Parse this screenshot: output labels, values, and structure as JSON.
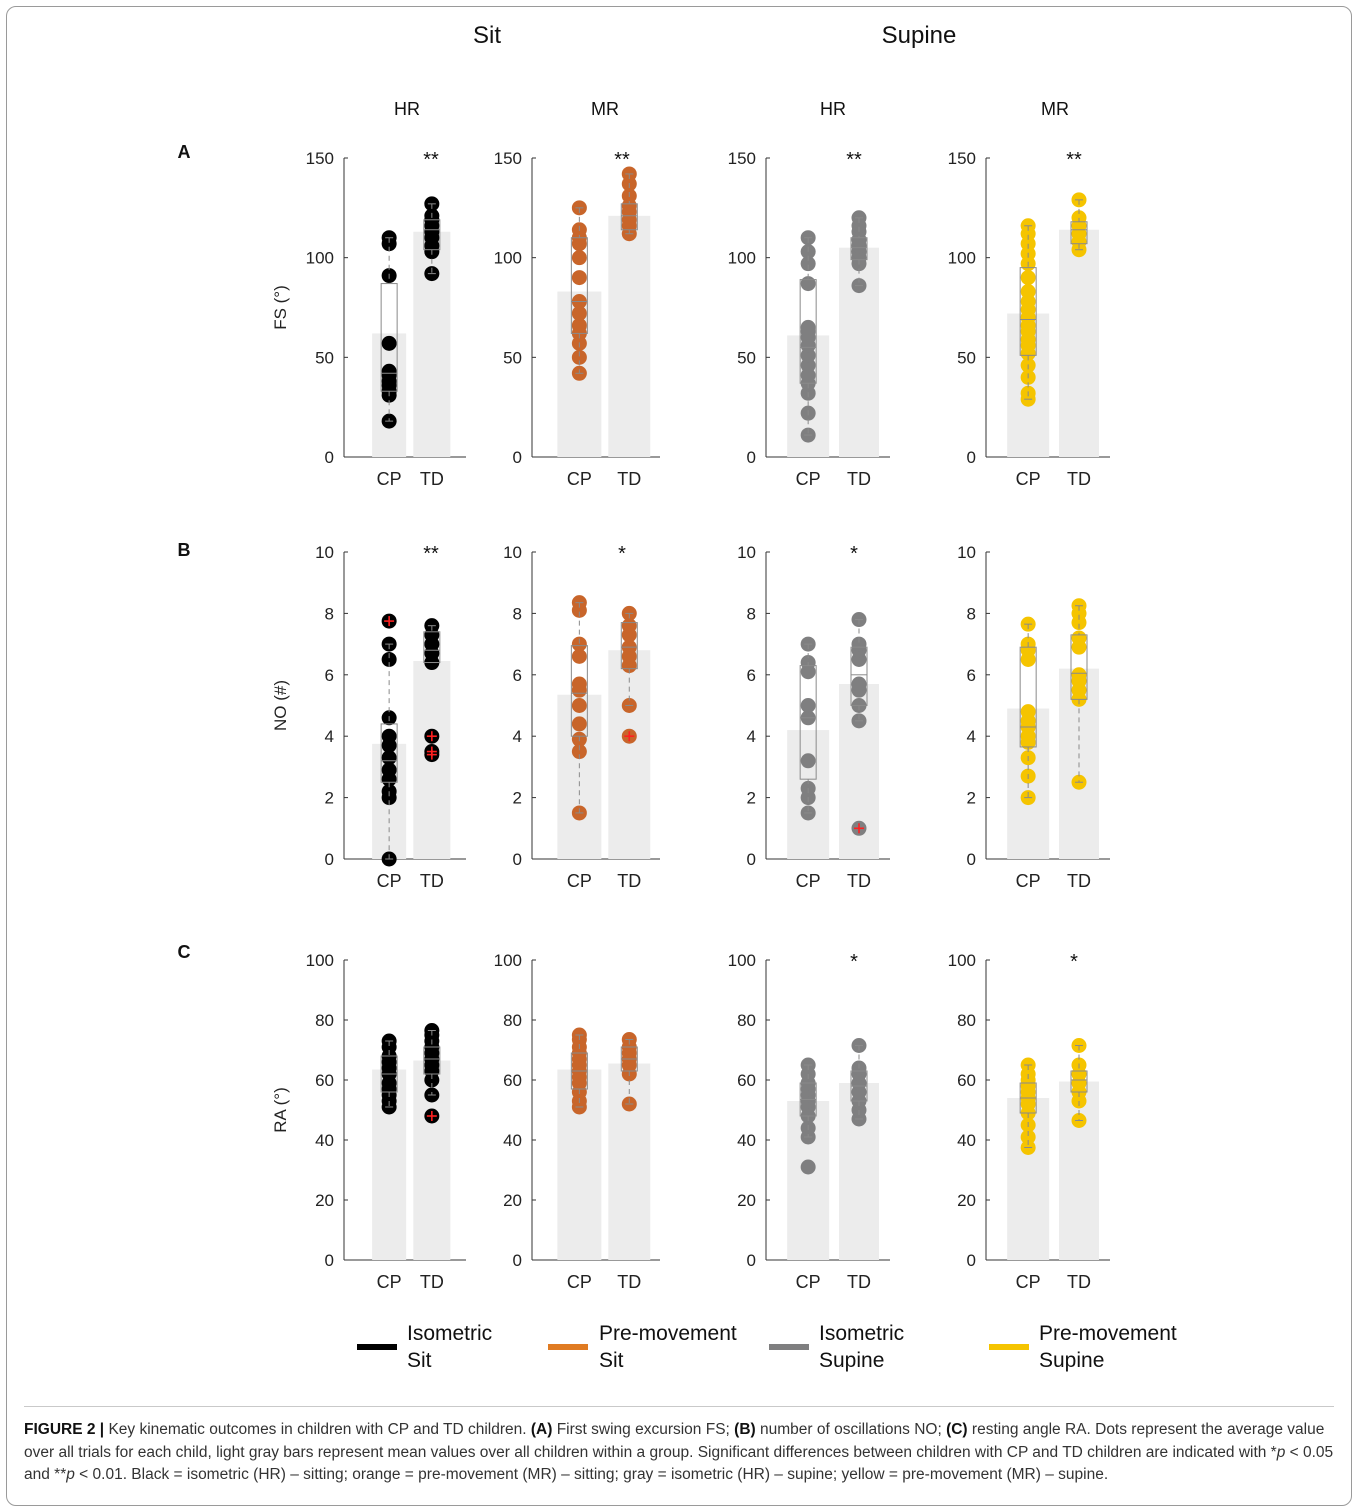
{
  "column_headers": [
    "Sit",
    "Supine"
  ],
  "panel_titles": [
    "HR",
    "MR",
    "HR",
    "MR"
  ],
  "row_labels": [
    "A",
    "B",
    "C"
  ],
  "legend": [
    {
      "line1": "Isometric",
      "line2": "Sit",
      "color": "#000000"
    },
    {
      "line1": "Pre-movement",
      "line2": "Sit",
      "color": "#e07b22"
    },
    {
      "line1": "Isometric",
      "line2": "Supine",
      "color": "#7f7f80"
    },
    {
      "line1": "Pre-movement",
      "line2": "Supine",
      "color": "#f5c400"
    }
  ],
  "caption": {
    "label": "FIGURE 2 |",
    "s1": " Key kinematic outcomes in children with CP and TD children. ",
    "a_label": "(A)",
    "a_text": " First swing excursion FS; ",
    "b_label": "(B)",
    "b_text": " number of oscillations NO; ",
    "c_label": "(C)",
    "c_text": " resting angle RA. Dots represent the average value over all trials for each child, light gray bars represent mean values over all children within a group. Significant differences between children with CP and TD children are indicated with *",
    "p1": "p",
    "t1": " < 0.05 and **",
    "p2": "p",
    "t2": " < 0.01. Black = isometric (HR) – sitting; orange = pre-movement (MR) – sitting; gray = isometric (HR) – supine; yellow = pre-movement (MR) – supine."
  },
  "chart_data": [
    {
      "type": "bar",
      "row": "A",
      "panel": 1,
      "ylabel": "FS (°)",
      "ylim": [
        0,
        150
      ],
      "yticks": [
        0,
        50,
        100,
        150
      ],
      "categories": [
        "CP",
        "TD"
      ],
      "sig": "**",
      "color": "#000000",
      "values": [
        62,
        113
      ],
      "points": [
        [
          18,
          31,
          33,
          36,
          38,
          41,
          43,
          57,
          91,
          107,
          110
        ],
        [
          92,
          103,
          106,
          110,
          113,
          116,
          119,
          121,
          127
        ]
      ],
      "box": [
        {
          "q1": 33,
          "med": 42,
          "q3": 87,
          "wl": 18,
          "wh": 110,
          "out": []
        },
        {
          "q1": 104,
          "med": 114,
          "q3": 119,
          "wl": 92,
          "wh": 127,
          "out": []
        }
      ]
    },
    {
      "type": "bar",
      "row": "A",
      "panel": 2,
      "ylabel": "",
      "ylim": [
        0,
        150
      ],
      "yticks": [
        0,
        50,
        100,
        150
      ],
      "categories": [
        "CP",
        "TD"
      ],
      "sig": "**",
      "color": "#c8652a",
      "values": [
        83,
        121
      ],
      "points": [
        [
          42,
          50,
          57,
          62,
          66,
          72,
          78,
          90,
          100,
          107,
          110,
          114,
          125
        ],
        [
          112,
          116,
          119,
          123,
          126,
          131,
          137,
          142
        ]
      ],
      "box": [
        {
          "q1": 62,
          "med": 78,
          "q3": 110,
          "wl": 42,
          "wh": 125,
          "out": []
        },
        {
          "q1": 114,
          "med": 121,
          "q3": 127,
          "wl": 112,
          "wh": 142,
          "out": []
        }
      ]
    },
    {
      "type": "bar",
      "row": "A",
      "panel": 3,
      "ylabel": "",
      "ylim": [
        0,
        150
      ],
      "yticks": [
        0,
        50,
        100,
        150
      ],
      "categories": [
        "CP",
        "TD"
      ],
      "sig": "**",
      "color": "#7f7f80",
      "values": [
        61,
        105
      ],
      "points": [
        [
          11,
          22,
          32,
          37,
          41,
          46,
          51,
          56,
          60,
          63,
          65,
          87,
          97,
          103,
          110
        ],
        [
          86,
          97,
          100,
          103,
          106,
          109,
          113,
          116,
          120
        ]
      ],
      "box": [
        {
          "q1": 37,
          "med": 55,
          "q3": 89,
          "wl": 11,
          "wh": 110,
          "out": []
        },
        {
          "q1": 99,
          "med": 105,
          "q3": 110,
          "wl": 86,
          "wh": 120,
          "out": []
        }
      ]
    },
    {
      "type": "bar",
      "row": "A",
      "panel": 4,
      "ylabel": "",
      "ylim": [
        0,
        150
      ],
      "yticks": [
        0,
        50,
        100,
        150
      ],
      "categories": [
        "CP",
        "TD"
      ],
      "sig": "**",
      "color": "#f5c400",
      "values": [
        72,
        114
      ],
      "points": [
        [
          29,
          32,
          40,
          46,
          52,
          56,
          59,
          63,
          66,
          70,
          74,
          78,
          83,
          90,
          97,
          102,
          107,
          112,
          116
        ],
        [
          104,
          108,
          112,
          116,
          120,
          129
        ]
      ],
      "box": [
        {
          "q1": 51,
          "med": 69,
          "q3": 95,
          "wl": 29,
          "wh": 116,
          "out": []
        },
        {
          "q1": 107,
          "med": 114,
          "q3": 118,
          "wl": 104,
          "wh": 129,
          "out": []
        }
      ]
    },
    {
      "type": "bar",
      "row": "B",
      "panel": 1,
      "ylabel": "NO (#)",
      "ylim": [
        0,
        10
      ],
      "yticks": [
        0,
        2,
        4,
        6,
        8,
        10
      ],
      "categories": [
        "CP",
        "TD"
      ],
      "sig": "**",
      "color": "#000000",
      "values": [
        3.75,
        6.45
      ],
      "points": [
        [
          0,
          2,
          2.2,
          2.6,
          2.9,
          3.3,
          3.7,
          4.0,
          4.6,
          6.5,
          7.0,
          7.75
        ],
        [
          3.4,
          3.5,
          4.0,
          6.4,
          6.7,
          7.0,
          7.3,
          7.6
        ]
      ],
      "box": [
        {
          "q1": 2.5,
          "med": 3.2,
          "q3": 4.4,
          "wl": 0,
          "wh": 7.0,
          "out": [
            7.75
          ]
        },
        {
          "q1": 6.4,
          "med": 6.8,
          "q3": 7.4,
          "wl": 6.4,
          "wh": 7.6,
          "out": [
            3.4,
            3.5,
            4.0
          ]
        }
      ]
    },
    {
      "type": "bar",
      "row": "B",
      "panel": 2,
      "ylabel": "",
      "ylim": [
        0,
        10
      ],
      "yticks": [
        0,
        2,
        4,
        6,
        8,
        10
      ],
      "categories": [
        "CP",
        "TD"
      ],
      "sig": "*",
      "color": "#c8652a",
      "values": [
        5.35,
        6.8
      ],
      "points": [
        [
          1.5,
          3.5,
          3.9,
          4.4,
          5.0,
          5.5,
          5.7,
          6.6,
          7.0,
          8.1,
          8.35
        ],
        [
          4.0,
          5.0,
          6.3,
          6.6,
          6.9,
          7.3,
          7.6,
          8.0
        ]
      ],
      "box": [
        {
          "q1": 4.0,
          "med": 5.4,
          "q3": 6.95,
          "wl": 1.5,
          "wh": 8.35,
          "out": []
        },
        {
          "q1": 6.2,
          "med": 6.9,
          "q3": 7.7,
          "wl": 5.0,
          "wh": 8.0,
          "out": [
            4.0
          ]
        }
      ]
    },
    {
      "type": "bar",
      "row": "B",
      "panel": 3,
      "ylabel": "",
      "ylim": [
        0,
        10
      ],
      "yticks": [
        0,
        2,
        4,
        6,
        8,
        10
      ],
      "categories": [
        "CP",
        "TD"
      ],
      "sig": "*",
      "color": "#7f7f80",
      "values": [
        4.2,
        5.7
      ],
      "points": [
        [
          1.5,
          2.0,
          2.3,
          3.2,
          4.6,
          5.0,
          6.1,
          6.4,
          7.0
        ],
        [
          1.0,
          4.5,
          5.0,
          5.5,
          5.7,
          6.5,
          6.8,
          7.0,
          7.8
        ]
      ],
      "box": [
        {
          "q1": 2.6,
          "med": 4.6,
          "q3": 6.3,
          "wl": 1.5,
          "wh": 7.0,
          "out": []
        },
        {
          "q1": 5.0,
          "med": 6.0,
          "q3": 6.9,
          "wl": 4.5,
          "wh": 7.8,
          "out": [
            1.0
          ]
        }
      ]
    },
    {
      "type": "bar",
      "row": "B",
      "panel": 4,
      "ylabel": "",
      "ylim": [
        0,
        10
      ],
      "yticks": [
        0,
        2,
        4,
        6,
        8,
        10
      ],
      "categories": [
        "CP",
        "TD"
      ],
      "sig": "",
      "color": "#f5c400",
      "values": [
        4.9,
        6.2
      ],
      "points": [
        [
          2.0,
          2.7,
          3.3,
          3.8,
          4.0,
          4.3,
          4.5,
          4.8,
          6.5,
          6.8,
          7.0,
          7.65
        ],
        [
          2.5,
          5.2,
          5.5,
          5.8,
          6.0,
          6.9,
          7.2,
          7.7,
          8.0,
          8.25
        ]
      ],
      "box": [
        {
          "q1": 3.65,
          "med": 4.3,
          "q3": 6.9,
          "wl": 2.0,
          "wh": 7.65,
          "out": []
        },
        {
          "q1": 5.2,
          "med": 6.05,
          "q3": 7.3,
          "wl": 2.5,
          "wh": 8.25,
          "out": []
        }
      ]
    },
    {
      "type": "bar",
      "row": "C",
      "panel": 1,
      "ylabel": "RA (°)",
      "ylim": [
        0,
        100
      ],
      "yticks": [
        0,
        20,
        40,
        60,
        80,
        100
      ],
      "categories": [
        "CP",
        "TD"
      ],
      "sig": "",
      "color": "#000000",
      "values": [
        63.5,
        66.5
      ],
      "points": [
        [
          51,
          53,
          55,
          57,
          59,
          62,
          64,
          66,
          68,
          71,
          73
        ],
        [
          48,
          55,
          60,
          63,
          65,
          67,
          69,
          71,
          73,
          75,
          76.5
        ]
      ],
      "box": [
        {
          "q1": 56,
          "med": 62,
          "q3": 68,
          "wl": 51,
          "wh": 73,
          "out": []
        },
        {
          "q1": 62,
          "med": 67,
          "q3": 71,
          "wl": 55,
          "wh": 76.5,
          "out": [
            48
          ]
        }
      ]
    },
    {
      "type": "bar",
      "row": "C",
      "panel": 2,
      "ylabel": "",
      "ylim": [
        0,
        100
      ],
      "yticks": [
        0,
        20,
        40,
        60,
        80,
        100
      ],
      "categories": [
        "CP",
        "TD"
      ],
      "sig": "",
      "color": "#c8652a",
      "values": [
        63.5,
        65.5
      ],
      "points": [
        [
          51,
          53,
          56,
          59,
          61,
          63,
          65,
          67,
          69,
          71,
          73.5,
          75
        ],
        [
          52,
          62,
          65,
          67,
          69,
          71,
          73.5
        ]
      ],
      "box": [
        {
          "q1": 57,
          "med": 63,
          "q3": 69,
          "wl": 51,
          "wh": 75,
          "out": []
        },
        {
          "q1": 63,
          "med": 67,
          "q3": 71,
          "wl": 52,
          "wh": 73.5,
          "out": []
        }
      ]
    },
    {
      "type": "bar",
      "row": "C",
      "panel": 3,
      "ylabel": "",
      "ylim": [
        0,
        100
      ],
      "yticks": [
        0,
        20,
        40,
        60,
        80,
        100
      ],
      "categories": [
        "CP",
        "TD"
      ],
      "sig": "*",
      "color": "#7f7f80",
      "values": [
        53,
        59
      ],
      "points": [
        [
          31,
          41,
          44,
          48,
          51,
          53,
          55,
          57,
          59,
          62,
          65
        ],
        [
          47,
          50,
          53,
          56,
          59,
          62,
          64,
          71.5
        ]
      ],
      "box": [
        {
          "q1": 48,
          "med": 53.5,
          "q3": 59,
          "wl": 41,
          "wh": 65,
          "out": []
        },
        {
          "q1": 53,
          "med": 58,
          "q3": 63,
          "wl": 47,
          "wh": 71.5,
          "out": []
        }
      ]
    },
    {
      "type": "bar",
      "row": "C",
      "panel": 4,
      "ylabel": "",
      "ylim": [
        0,
        100
      ],
      "yticks": [
        0,
        20,
        40,
        60,
        80,
        100
      ],
      "categories": [
        "CP",
        "TD"
      ],
      "sig": "*",
      "color": "#f5c400",
      "values": [
        54,
        59.5
      ],
      "points": [
        [
          37.5,
          41,
          45,
          49,
          52,
          54,
          56,
          58,
          60,
          62,
          65
        ],
        [
          46.5,
          53,
          56,
          59,
          62,
          65,
          71.5
        ]
      ],
      "box": [
        {
          "q1": 49,
          "med": 54,
          "q3": 59,
          "wl": 37.5,
          "wh": 65,
          "out": []
        },
        {
          "q1": 56,
          "med": 60,
          "q3": 63,
          "wl": 46.5,
          "wh": 71.5,
          "out": []
        }
      ]
    }
  ]
}
